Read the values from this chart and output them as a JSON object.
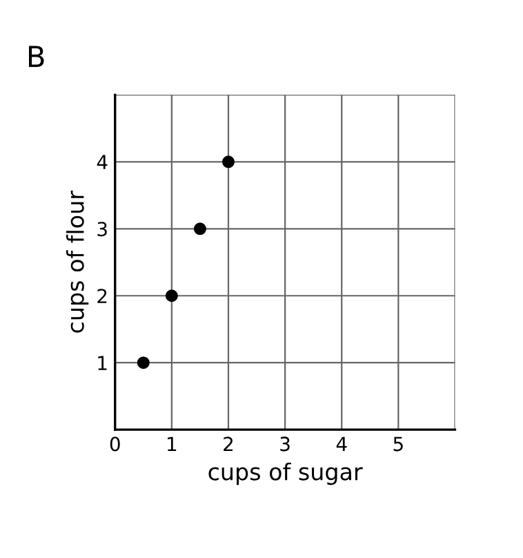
{
  "chart_data": {
    "type": "scatter",
    "title": "B",
    "xlabel": "cups of sugar",
    "ylabel": "cups of flour",
    "x": [
      0.5,
      1,
      1.5,
      2
    ],
    "series": [
      {
        "color": "#000000",
        "values": [
          1,
          2,
          3,
          4
        ]
      }
    ],
    "marker": "circle",
    "xlim": [
      0,
      6
    ],
    "ylim": [
      0,
      5
    ],
    "xticks": [
      0,
      1,
      2,
      3,
      4,
      5,
      {
        "value": 6,
        "label": null
      }
    ],
    "yticks": [
      1,
      2,
      3,
      4,
      {
        "value": 5,
        "label": null
      }
    ],
    "grid": true
  }
}
